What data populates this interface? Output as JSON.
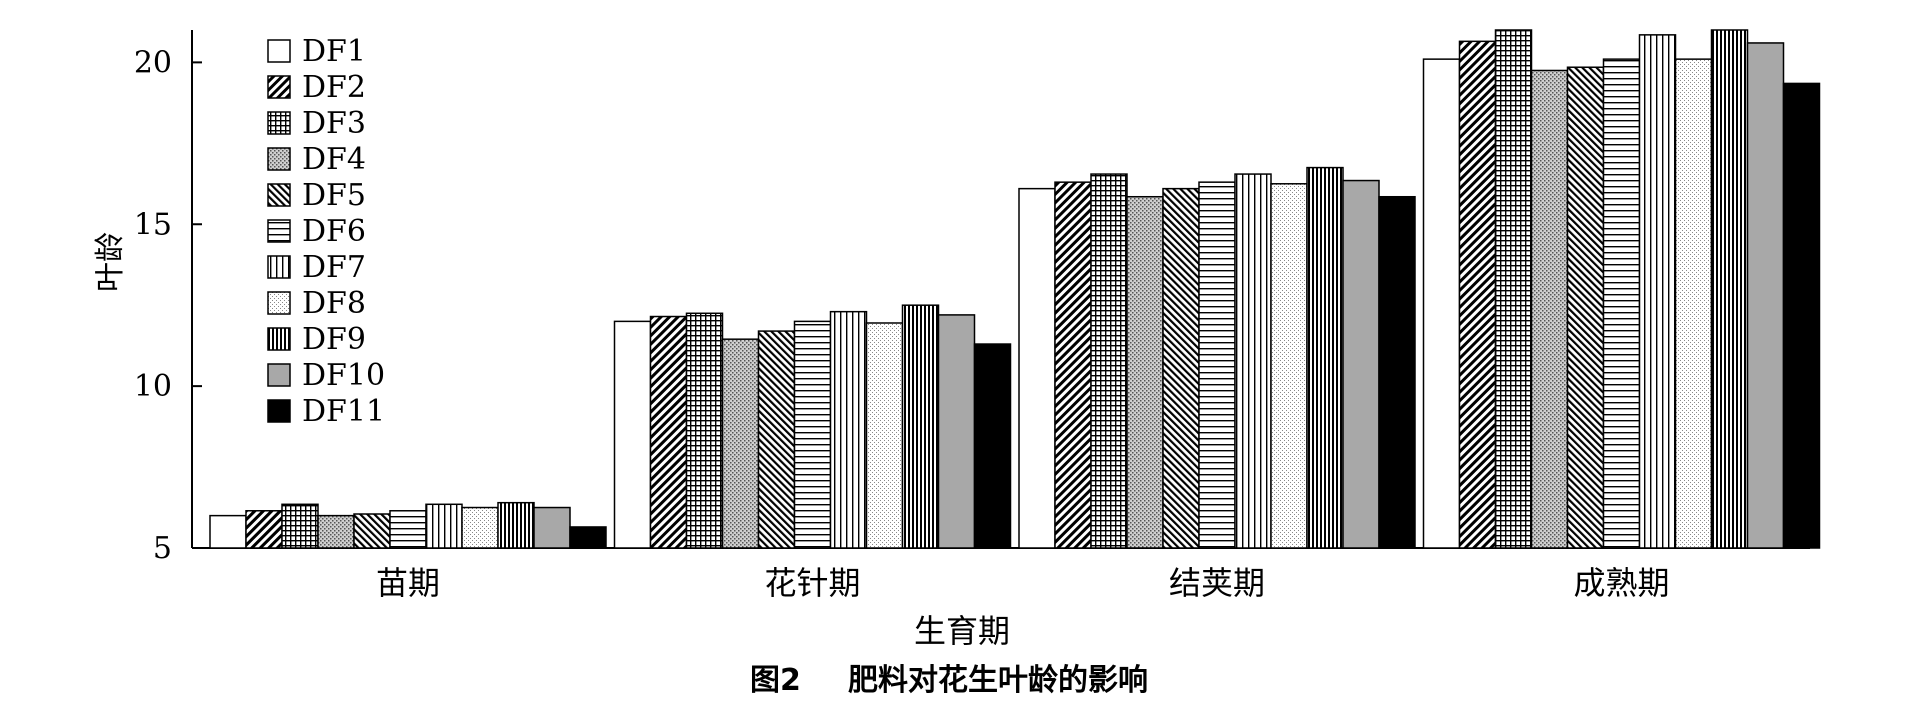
{
  "chart_data": {
    "type": "bar",
    "title": "",
    "caption": {
      "number": "图2",
      "text": "肥料对花生叶龄的影响"
    },
    "xlabel": "生育期",
    "ylabel": "叶龄",
    "ylim": [
      5,
      21
    ],
    "yticks": [
      5,
      10,
      15,
      20
    ],
    "grid": false,
    "legend_position": "top-left",
    "categories": [
      "苗期",
      "花针期",
      "结荚期",
      "成熟期"
    ],
    "series": [
      {
        "name": "DF1",
        "pattern": "white",
        "values": [
          6.0,
          12.0,
          16.1,
          20.1
        ]
      },
      {
        "name": "DF2",
        "pattern": "diag-dense",
        "values": [
          6.15,
          12.15,
          16.3,
          20.65
        ]
      },
      {
        "name": "DF3",
        "pattern": "grid",
        "values": [
          6.35,
          12.25,
          16.55,
          21.0
        ]
      },
      {
        "name": "DF4",
        "pattern": "dots",
        "values": [
          6.0,
          11.45,
          15.85,
          19.75
        ]
      },
      {
        "name": "DF5",
        "pattern": "diag-fine",
        "values": [
          6.05,
          11.7,
          16.1,
          19.85
        ]
      },
      {
        "name": "DF6",
        "pattern": "horizontal",
        "values": [
          6.15,
          12.0,
          16.3,
          20.1
        ]
      },
      {
        "name": "DF7",
        "pattern": "vertical",
        "values": [
          6.35,
          12.3,
          16.55,
          20.85
        ]
      },
      {
        "name": "DF8",
        "pattern": "light-dots",
        "values": [
          6.25,
          11.95,
          16.25,
          20.1
        ]
      },
      {
        "name": "DF9",
        "pattern": "vert-dense",
        "values": [
          6.4,
          12.5,
          16.75,
          21.0
        ]
      },
      {
        "name": "DF10",
        "pattern": "gray",
        "values": [
          6.25,
          12.2,
          16.35,
          20.6
        ]
      },
      {
        "name": "DF11",
        "pattern": "black",
        "values": [
          5.65,
          11.3,
          15.85,
          19.35
        ]
      }
    ]
  }
}
